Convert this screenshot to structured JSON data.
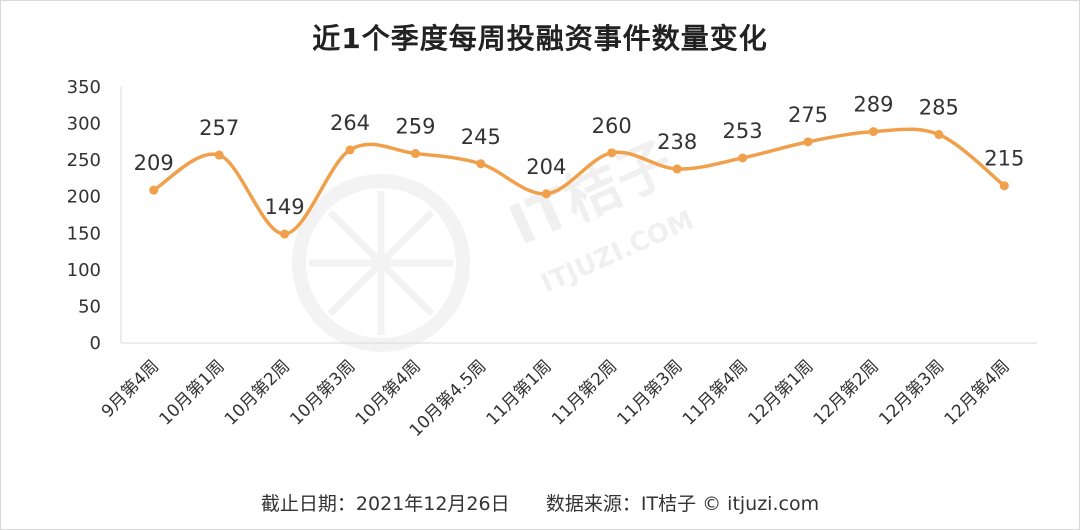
{
  "title": "近1个季度每周投融资事件数量变化",
  "footer": {
    "date_text": "截止日期：2021年12月26日",
    "source_text": "数据来源：IT桔子 © itjuzi.com"
  },
  "watermark": {
    "brand": "IT桔子",
    "site": "ITJUZI.COM",
    "icon": "orange-slice-icon"
  },
  "colors": {
    "line": "#F0A04B",
    "axis": "#d9d9d9",
    "text": "#333333"
  },
  "chart_data": {
    "type": "line",
    "categories": [
      "9月第4周",
      "10月第1周",
      "10月第2周",
      "10月第3周",
      "10月第4周",
      "10月第4.5周",
      "11月第1周",
      "11月第2周",
      "11月第3周",
      "11月第4周",
      "12月第1周",
      "12月第2周",
      "12月第3周",
      "12月第4周"
    ],
    "values": [
      209,
      257,
      149,
      264,
      259,
      245,
      204,
      260,
      238,
      253,
      275,
      289,
      285,
      215
    ],
    "ylim": [
      0,
      350
    ],
    "yticks": [
      0,
      50,
      100,
      150,
      200,
      250,
      300,
      350
    ],
    "smooth": true,
    "grid": false,
    "legend": "none"
  }
}
